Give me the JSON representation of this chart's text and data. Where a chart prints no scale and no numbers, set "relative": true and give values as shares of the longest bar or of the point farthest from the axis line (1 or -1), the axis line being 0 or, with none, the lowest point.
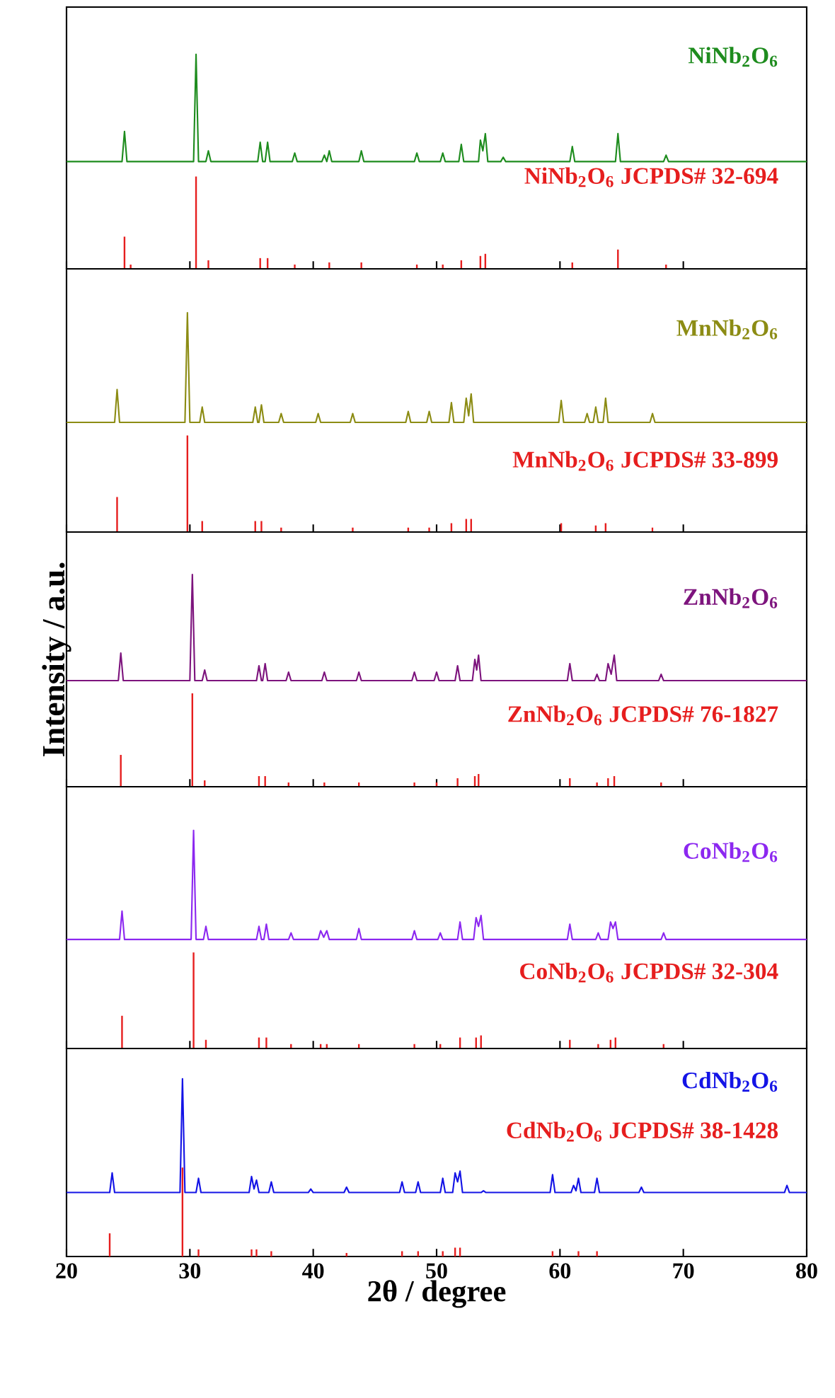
{
  "chart_data": [
    {
      "type": "line",
      "relative": true,
      "xlim": [
        20,
        80
      ],
      "xticks": [
        20,
        30,
        40,
        50,
        60,
        70,
        80
      ],
      "tick_labels": false,
      "series": [
        {
          "name": "NiNb$_{2}$O$_{6}$",
          "color": "#1e8c1e",
          "x": [
            20,
            24.5,
            24.7,
            24.9,
            30.3,
            30.5,
            30.7,
            31.3,
            31.5,
            31.7,
            35.5,
            35.7,
            35.9,
            36.1,
            36.3,
            36.5,
            38.3,
            38.5,
            38.7,
            40.7,
            40.9,
            41.1,
            41.3,
            41.5,
            43.7,
            43.9,
            44.1,
            48.2,
            48.4,
            48.6,
            50.3,
            50.5,
            50.7,
            51.8,
            52.0,
            52.2,
            53.4,
            53.55,
            53.75,
            53.95,
            54.15,
            55.2,
            55.4,
            55.6,
            60.8,
            61.0,
            61.2,
            64.5,
            64.7,
            64.9,
            68.4,
            68.6,
            68.8,
            80
          ],
          "values": [
            0.5,
            0.5,
            0.64,
            0.5,
            0.5,
            1,
            0.5,
            0.5,
            0.55,
            0.5,
            0.5,
            0.59,
            0.5,
            0.5,
            0.59,
            0.5,
            0.5,
            0.54,
            0.5,
            0.5,
            0.53,
            0.5,
            0.55,
            0.5,
            0.5,
            0.55,
            0.5,
            0.5,
            0.54,
            0.5,
            0.5,
            0.54,
            0.5,
            0.5,
            0.58,
            0.5,
            0.5,
            0.6,
            0.55,
            0.63,
            0.5,
            0.5,
            0.52,
            0.5,
            0.5,
            0.57,
            0.5,
            0.5,
            0.63,
            0.5,
            0.5,
            0.53,
            0.5,
            0.5
          ]
        },
        {
          "name": "NiNb$_{2}$O$_{6}$ JCPDS# 32-694",
          "color": "#e61e1e",
          "type": "bar",
          "x": [
            24.7,
            25.2,
            30.5,
            31.5,
            35.7,
            36.3,
            38.5,
            41.3,
            43.9,
            48.4,
            50.5,
            52.0,
            53.55,
            53.95,
            61.0,
            64.7,
            68.6
          ],
          "values": [
            0.15,
            0.02,
            0.43,
            0.04,
            0.05,
            0.05,
            0.02,
            0.03,
            0.03,
            0.02,
            0.02,
            0.04,
            0.06,
            0.07,
            0.03,
            0.09,
            0.02
          ]
        }
      ]
    },
    {
      "type": "line",
      "relative": true,
      "xlim": [
        20,
        80
      ],
      "xticks": [
        20,
        30,
        40,
        50,
        60,
        70,
        80
      ],
      "tick_labels": false,
      "series": [
        {
          "name": "MnNb$_{2}$O$_{6}$",
          "color": "#8c8c14",
          "x": [
            20,
            23.9,
            24.1,
            24.3,
            29.6,
            29.8,
            30.0,
            30.8,
            31.0,
            31.2,
            35.1,
            35.3,
            35.5,
            35.6,
            35.8,
            36.0,
            37.2,
            37.4,
            37.6,
            40.2,
            40.4,
            40.6,
            43.0,
            43.2,
            43.4,
            47.5,
            47.7,
            47.9,
            49.2,
            49.4,
            49.6,
            51.0,
            51.2,
            51.4,
            52.2,
            52.4,
            52.6,
            52.8,
            53.0,
            59.9,
            60.1,
            60.3,
            62.0,
            62.2,
            62.4,
            62.7,
            62.9,
            63.1,
            63.5,
            63.7,
            63.9,
            67.3,
            67.5,
            67.7,
            80
          ],
          "values": [
            0.5,
            0.5,
            0.65,
            0.5,
            0.5,
            1,
            0.5,
            0.5,
            0.57,
            0.5,
            0.5,
            0.57,
            0.5,
            0.5,
            0.58,
            0.5,
            0.5,
            0.54,
            0.5,
            0.5,
            0.54,
            0.5,
            0.5,
            0.54,
            0.5,
            0.5,
            0.55,
            0.5,
            0.5,
            0.55,
            0.5,
            0.5,
            0.59,
            0.5,
            0.5,
            0.61,
            0.53,
            0.63,
            0.5,
            0.5,
            0.6,
            0.5,
            0.5,
            0.54,
            0.5,
            0.5,
            0.57,
            0.5,
            0.5,
            0.61,
            0.5,
            0.5,
            0.54,
            0.5,
            0.5
          ]
        },
        {
          "name": "MnNb$_{2}$O$_{6}$ JCPDS# 33-899",
          "color": "#e61e1e",
          "type": "bar",
          "x": [
            24.1,
            29.8,
            31.0,
            35.3,
            35.8,
            37.4,
            43.2,
            47.7,
            49.4,
            51.2,
            52.4,
            52.8,
            60.1,
            62.9,
            63.7,
            67.5
          ],
          "values": [
            0.16,
            0.44,
            0.05,
            0.05,
            0.05,
            0.02,
            0.02,
            0.02,
            0.02,
            0.04,
            0.06,
            0.06,
            0.04,
            0.03,
            0.04,
            0.02
          ]
        }
      ]
    },
    {
      "type": "line",
      "relative": true,
      "xlim": [
        20,
        80
      ],
      "xticks": [
        20,
        30,
        40,
        50,
        60,
        70,
        80
      ],
      "tick_labels": false,
      "ylabel": "Intensity / a.u.",
      "series": [
        {
          "name": "ZnNb$_{2}$O$_{6}$",
          "color": "#7d147d",
          "x": [
            20,
            24.2,
            24.4,
            24.6,
            30.0,
            30.2,
            30.4,
            31.0,
            31.2,
            31.4,
            35.4,
            35.6,
            35.8,
            35.9,
            36.1,
            36.3,
            37.8,
            38.0,
            38.2,
            40.7,
            40.9,
            41.1,
            43.5,
            43.7,
            43.9,
            48.0,
            48.2,
            48.4,
            49.8,
            50.0,
            50.2,
            51.5,
            51.7,
            51.9,
            52.9,
            53.1,
            53.25,
            53.4,
            53.6,
            60.6,
            60.8,
            61.0,
            62.8,
            63.0,
            63.2,
            63.7,
            63.9,
            64.15,
            64.4,
            64.6,
            68.0,
            68.2,
            68.4,
            80
          ],
          "values": [
            0.5,
            0.5,
            0.63,
            0.5,
            0.5,
            1,
            0.5,
            0.5,
            0.55,
            0.5,
            0.5,
            0.57,
            0.5,
            0.5,
            0.58,
            0.5,
            0.5,
            0.54,
            0.5,
            0.5,
            0.54,
            0.5,
            0.5,
            0.54,
            0.5,
            0.5,
            0.54,
            0.5,
            0.5,
            0.54,
            0.5,
            0.5,
            0.57,
            0.5,
            0.5,
            0.6,
            0.55,
            0.62,
            0.5,
            0.5,
            0.58,
            0.5,
            0.5,
            0.53,
            0.5,
            0.5,
            0.58,
            0.53,
            0.62,
            0.5,
            0.5,
            0.53,
            0.5,
            0.5
          ]
        },
        {
          "name": "ZnNb$_{2}$O$_{6}$ JCPDS# 76-1827",
          "color": "#e61e1e",
          "type": "bar",
          "x": [
            24.4,
            30.2,
            31.2,
            35.6,
            36.1,
            38.0,
            40.9,
            43.7,
            48.2,
            50.0,
            51.7,
            53.1,
            53.4,
            60.8,
            63.0,
            63.9,
            64.4,
            68.2
          ],
          "values": [
            0.15,
            0.44,
            0.03,
            0.05,
            0.05,
            0.02,
            0.02,
            0.02,
            0.02,
            0.02,
            0.04,
            0.05,
            0.06,
            0.04,
            0.02,
            0.04,
            0.05,
            0.02
          ]
        }
      ]
    },
    {
      "type": "line",
      "relative": true,
      "xlim": [
        20,
        80
      ],
      "xticks": [
        20,
        30,
        40,
        50,
        60,
        70,
        80
      ],
      "tick_labels": false,
      "series": [
        {
          "name": "CoNb$_{2}$O$_{6}$",
          "color": "#8c28f0",
          "x": [
            20,
            24.3,
            24.5,
            24.7,
            30.1,
            30.3,
            30.5,
            31.1,
            31.3,
            31.5,
            35.4,
            35.6,
            35.8,
            36.0,
            36.2,
            36.4,
            38.0,
            38.2,
            38.4,
            40.4,
            40.6,
            40.85,
            41.1,
            41.3,
            43.5,
            43.7,
            43.9,
            48.0,
            48.2,
            48.4,
            50.1,
            50.3,
            50.5,
            51.7,
            51.9,
            52.1,
            53.0,
            53.2,
            53.4,
            53.6,
            53.8,
            60.6,
            60.8,
            61.0,
            62.9,
            63.1,
            63.3,
            63.9,
            64.1,
            64.3,
            64.5,
            64.7,
            68.2,
            68.4,
            68.6,
            80
          ],
          "values": [
            0.5,
            0.5,
            0.63,
            0.5,
            0.5,
            1,
            0.5,
            0.5,
            0.56,
            0.5,
            0.5,
            0.56,
            0.5,
            0.5,
            0.57,
            0.5,
            0.5,
            0.53,
            0.5,
            0.5,
            0.54,
            0.51,
            0.54,
            0.5,
            0.5,
            0.55,
            0.5,
            0.5,
            0.54,
            0.5,
            0.5,
            0.53,
            0.5,
            0.5,
            0.58,
            0.5,
            0.5,
            0.6,
            0.56,
            0.61,
            0.5,
            0.5,
            0.57,
            0.5,
            0.5,
            0.53,
            0.5,
            0.5,
            0.58,
            0.55,
            0.58,
            0.5,
            0.5,
            0.53,
            0.5,
            0.5
          ]
        },
        {
          "name": "CoNb$_{2}$O$_{6}$ JCPDS# 32-304",
          "color": "#e61e1e",
          "type": "bar",
          "x": [
            24.5,
            30.3,
            31.3,
            35.6,
            36.2,
            38.2,
            40.6,
            41.1,
            43.7,
            48.2,
            50.3,
            51.9,
            53.2,
            53.6,
            60.8,
            63.1,
            64.1,
            64.5,
            68.4
          ],
          "values": [
            0.15,
            0.44,
            0.04,
            0.05,
            0.05,
            0.02,
            0.02,
            0.02,
            0.02,
            0.02,
            0.02,
            0.05,
            0.05,
            0.06,
            0.04,
            0.02,
            0.04,
            0.05,
            0.02
          ]
        }
      ]
    },
    {
      "type": "line",
      "relative": true,
      "xlim": [
        20,
        80
      ],
      "xticks": [
        20,
        30,
        40,
        50,
        60,
        70,
        80
      ],
      "tick_labels": "x",
      "xlabel": "2θ / degree",
      "series": [
        {
          "name": "CdNb$_{2}$O$_{6}$",
          "color": "#1414e6",
          "x": [
            20,
            23.5,
            23.7,
            23.9,
            29.2,
            29.4,
            29.6,
            30.5,
            30.7,
            30.9,
            34.8,
            35.0,
            35.2,
            35.4,
            35.6,
            36.4,
            36.6,
            36.8,
            39.6,
            39.8,
            40.0,
            42.5,
            42.7,
            42.9,
            47.0,
            47.2,
            47.4,
            48.3,
            48.5,
            48.7,
            50.3,
            50.5,
            50.7,
            51.3,
            51.5,
            51.7,
            51.9,
            52.1,
            53.6,
            53.8,
            54.0,
            59.2,
            59.4,
            59.6,
            60.9,
            61.1,
            61.3,
            61.5,
            61.7,
            62.8,
            63.0,
            63.2,
            66.4,
            66.6,
            66.8,
            78.2,
            78.4,
            78.6,
            80
          ],
          "values": [
            0.36,
            0.36,
            0.47,
            0.36,
            0.36,
            1,
            0.36,
            0.36,
            0.44,
            0.36,
            0.36,
            0.45,
            0.38,
            0.43,
            0.36,
            0.36,
            0.42,
            0.36,
            0.36,
            0.38,
            0.36,
            0.36,
            0.39,
            0.36,
            0.36,
            0.42,
            0.36,
            0.36,
            0.42,
            0.36,
            0.36,
            0.44,
            0.36,
            0.36,
            0.47,
            0.42,
            0.48,
            0.36,
            0.36,
            0.37,
            0.36,
            0.36,
            0.46,
            0.36,
            0.36,
            0.4,
            0.37,
            0.44,
            0.36,
            0.36,
            0.44,
            0.36,
            0.36,
            0.39,
            0.36,
            0.36,
            0.4,
            0.36,
            0.36
          ]
        },
        {
          "name": "CdNb$_{2}$O$_{6}$ JCPDS# 38-1428",
          "color": "#e61e1e",
          "type": "bar",
          "x": [
            23.5,
            29.4,
            30.7,
            35.0,
            35.4,
            36.6,
            42.7,
            47.2,
            48.5,
            50.5,
            51.5,
            51.9,
            59.4,
            61.5,
            63.0
          ],
          "values": [
            0.13,
            0.5,
            0.04,
            0.04,
            0.04,
            0.03,
            0.02,
            0.03,
            0.03,
            0.03,
            0.05,
            0.05,
            0.03,
            0.03,
            0.03
          ]
        }
      ]
    }
  ]
}
